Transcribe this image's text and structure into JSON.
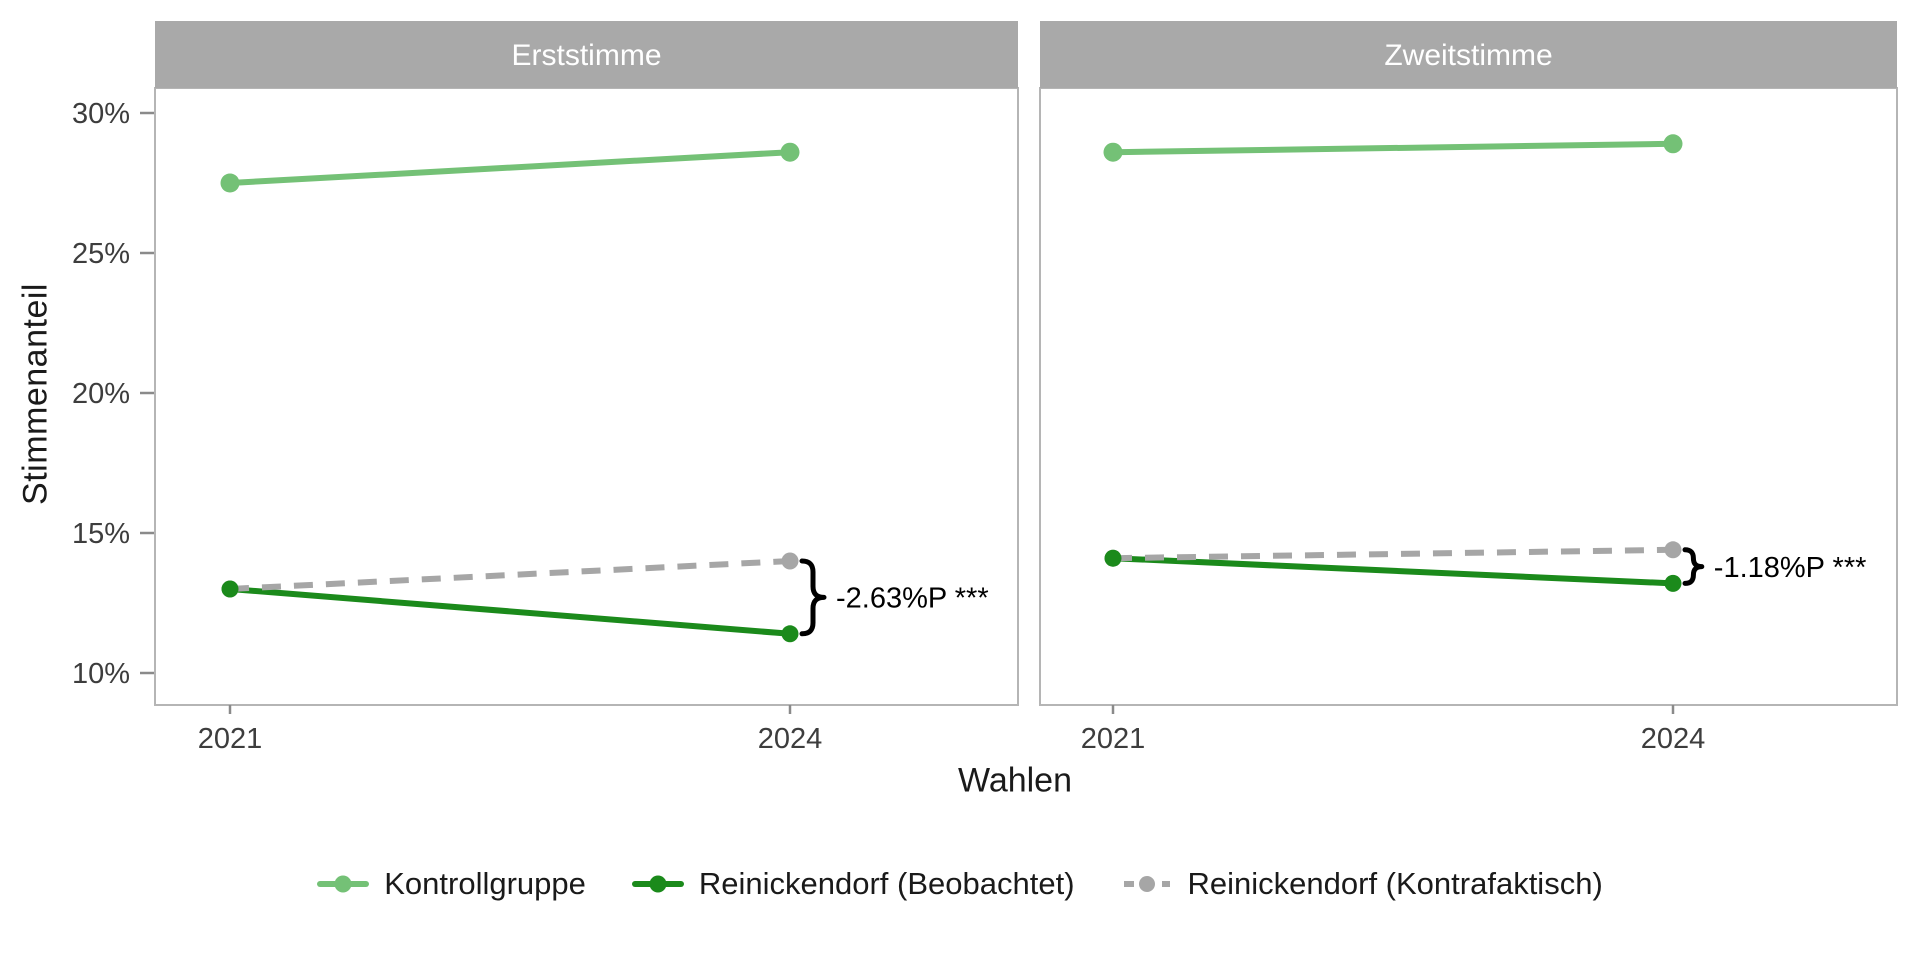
{
  "chart_data": {
    "type": "line",
    "title": "",
    "xlabel": "Wahlen",
    "ylabel": "Stimmenanteil",
    "x_categories": [
      "2021",
      "2024"
    ],
    "y_ticks": [
      {
        "value": 30,
        "label": "30%"
      },
      {
        "value": 25,
        "label": "25%"
      },
      {
        "value": 20,
        "label": "20%"
      },
      {
        "value": 15,
        "label": "15%"
      },
      {
        "value": 10,
        "label": "10%"
      }
    ],
    "ylim": [
      8.9,
      30.9
    ],
    "grid": false,
    "legend_position": "bottom",
    "facets": [
      {
        "title": "Erststimme",
        "series": [
          {
            "name": "Kontrollgruppe",
            "values": [
              27.5,
              28.6
            ]
          },
          {
            "name": "Reinickendorf (Beobachtet)",
            "values": [
              13.0,
              11.4
            ]
          },
          {
            "name": "Reinickendorf (Kontrafaktisch)",
            "values": [
              13.0,
              14.0
            ]
          }
        ],
        "annotation": {
          "label": "-2.63%P ***",
          "at_x": "2024",
          "top_series": 2,
          "bottom_series": 1
        }
      },
      {
        "title": "Zweitstimme",
        "series": [
          {
            "name": "Kontrollgruppe",
            "values": [
              28.6,
              28.9
            ]
          },
          {
            "name": "Reinickendorf (Beobachtet)",
            "values": [
              14.1,
              13.2
            ]
          },
          {
            "name": "Reinickendorf (Kontrafaktisch)",
            "values": [
              14.1,
              14.4
            ]
          }
        ],
        "annotation": {
          "label": "-1.18%P ***",
          "at_x": "2024",
          "top_series": 2,
          "bottom_series": 1
        }
      }
    ],
    "legend": [
      {
        "name": "Kontrollgruppe",
        "color": "#74c176",
        "dash": "solid"
      },
      {
        "name": "Reinickendorf (Beobachtet)",
        "color": "#1b8a1b",
        "dash": "solid"
      },
      {
        "name": "Reinickendorf (Kontrafaktisch)",
        "color": "#a6a6a6",
        "dash": "dashed"
      }
    ],
    "colors": {
      "strip_bg": "#a9a9a9",
      "strip_text": "#ffffff",
      "panel_border": "#b5b5b5",
      "tick": "#8a8a8a",
      "axis_text": "#3d3d3d",
      "axis_title": "#1a1a1a",
      "annotation": "#000000"
    }
  }
}
